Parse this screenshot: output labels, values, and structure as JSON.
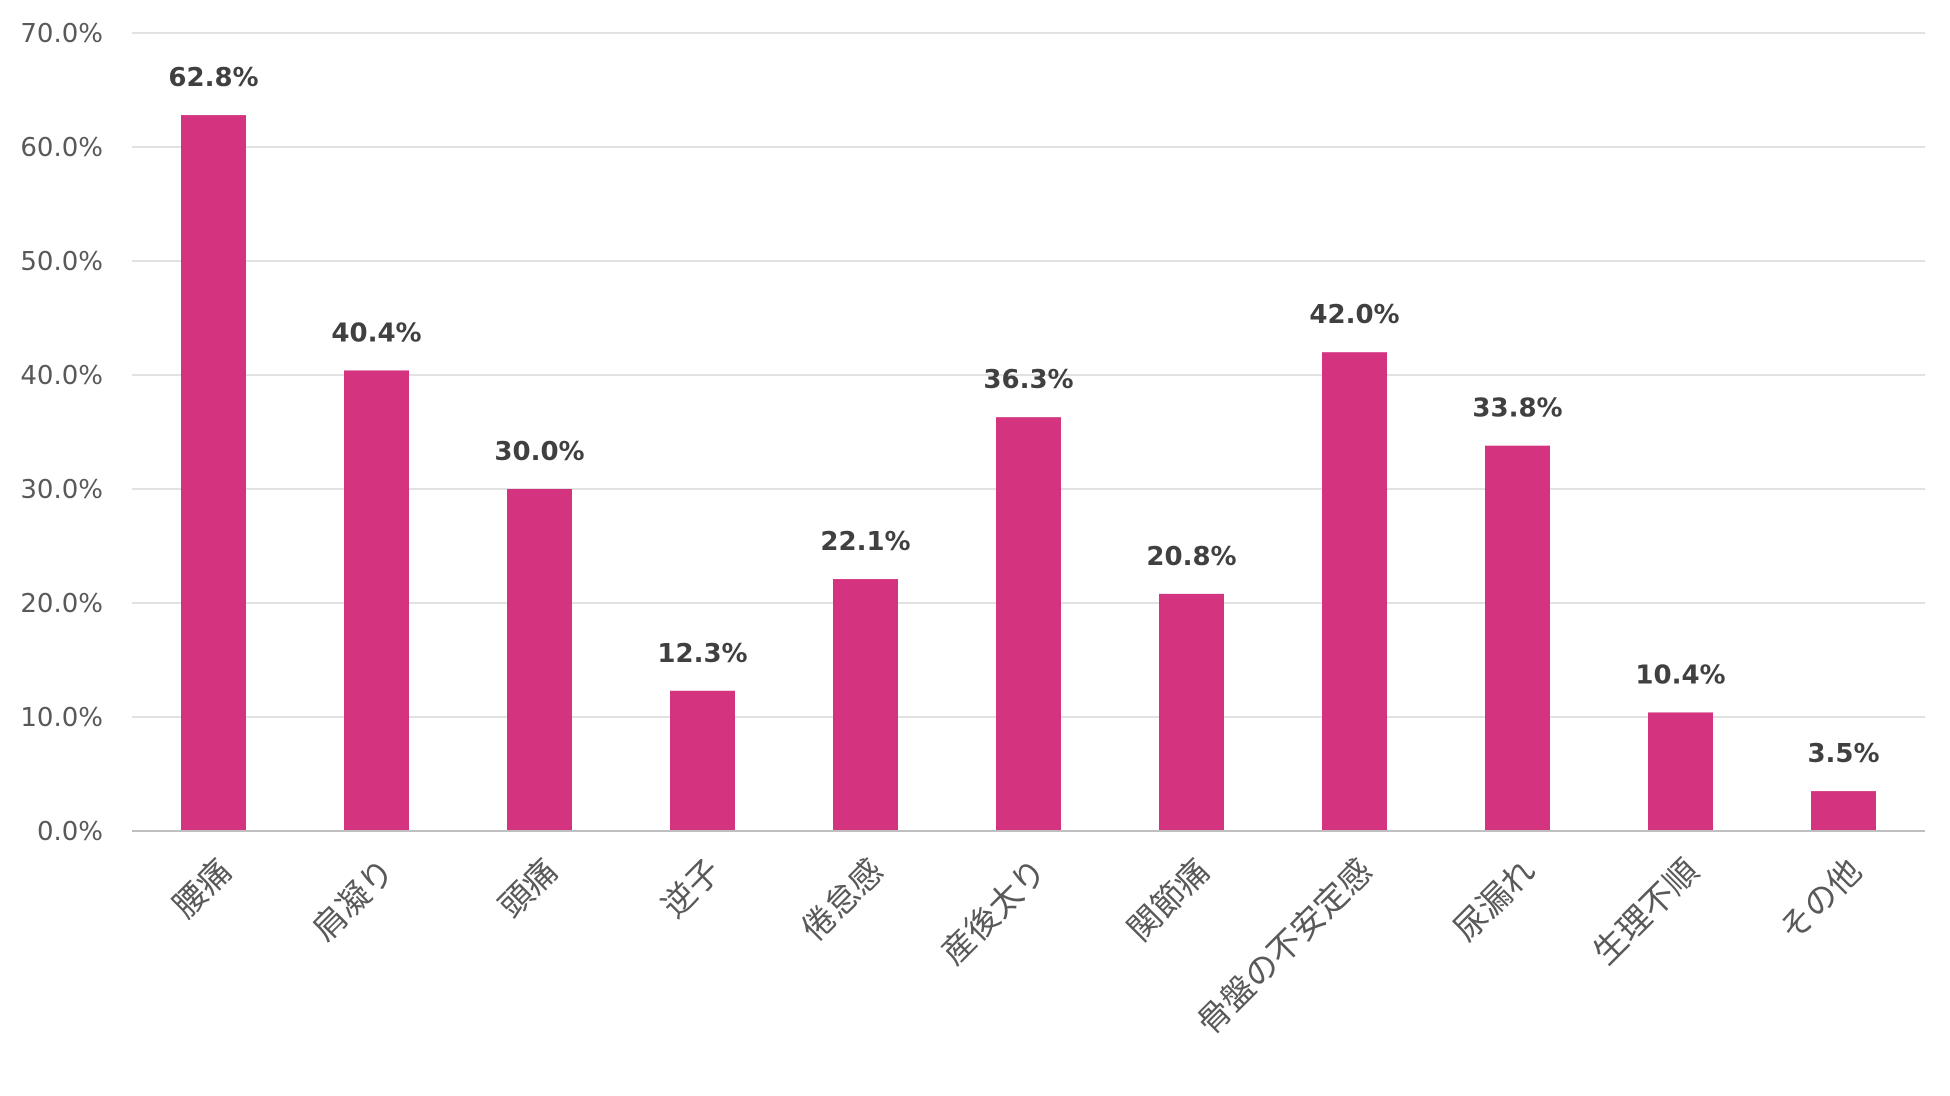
{
  "chart_data": {
    "type": "bar",
    "title": "",
    "xlabel": "",
    "ylabel": "",
    "categories": [
      "腰痛",
      "肩凝り",
      "頭痛",
      "逆子",
      "倦怠感",
      "産後太り",
      "関節痛",
      "骨盤の不安定感",
      "尿漏れ",
      "生理不順",
      "その他"
    ],
    "values": [
      62.8,
      40.4,
      30.0,
      12.3,
      22.1,
      36.3,
      20.8,
      42.0,
      33.8,
      10.4,
      3.5
    ],
    "data_labels": [
      "62.8%",
      "40.4%",
      "30.0%",
      "12.3%",
      "22.1%",
      "36.3%",
      "20.8%",
      "42.0%",
      "33.8%",
      "10.4%",
      "3.5%"
    ],
    "ylim": [
      0,
      70
    ],
    "yticks": [
      0,
      10,
      20,
      30,
      40,
      50,
      60,
      70
    ],
    "ytick_labels": [
      "0.0%",
      "10.0%",
      "20.0%",
      "30.0%",
      "40.0%",
      "50.0%",
      "60.0%",
      "70.0%"
    ],
    "grid": true,
    "legend": "none",
    "bar_color": "#d3337f"
  }
}
